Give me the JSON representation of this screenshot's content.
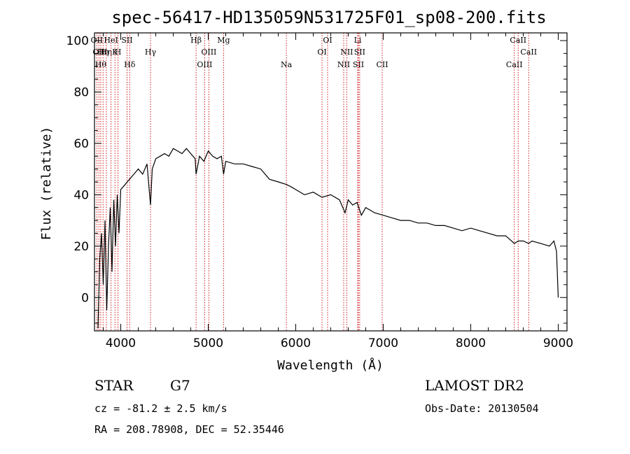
{
  "chart_data": {
    "type": "line",
    "title": "spec-56417-HD135059N531725F01_sp08-200.fits",
    "xlabel": "Wavelength (Å)",
    "ylabel": "Flux (relative)",
    "xlim": [
      3700,
      9100
    ],
    "ylim": [
      -13,
      103
    ],
    "x_ticks": [
      4000,
      5000,
      6000,
      7000,
      8000,
      9000
    ],
    "y_ticks": [
      0,
      20,
      40,
      60,
      80,
      100
    ],
    "grid": false,
    "spectrum_color": "#000000",
    "line_marker_color": "#cc0000",
    "series": [
      {
        "x": [
          3740,
          3760,
          3780,
          3800,
          3820,
          3840,
          3860,
          3880,
          3900,
          3920,
          3940,
          3960,
          3980,
          4000,
          4050,
          4100,
          4150,
          4200,
          4250,
          4300,
          4340,
          4360,
          4400,
          4450,
          4500,
          4550,
          4600,
          4650,
          4700,
          4750,
          4800,
          4850,
          4861,
          4900,
          4950,
          5000,
          5050,
          5100,
          5150,
          5175,
          5200,
          5300,
          5400,
          5500,
          5600,
          5700,
          5800,
          5893,
          5950,
          6000,
          6100,
          6200,
          6300,
          6400,
          6500,
          6563,
          6600,
          6650,
          6700,
          6750,
          6800,
          6900,
          7000,
          7100,
          7200,
          7300,
          7400,
          7500,
          7600,
          7700,
          7800,
          7900,
          8000,
          8100,
          8200,
          8300,
          8400,
          8498,
          8542,
          8600,
          8662,
          8700,
          8800,
          8900,
          8950,
          8980,
          9000
        ],
        "y": [
          -12,
          15,
          25,
          5,
          30,
          -5,
          20,
          35,
          10,
          38,
          20,
          40,
          25,
          42,
          44,
          46,
          48,
          50,
          48,
          52,
          36,
          50,
          54,
          55,
          56,
          55,
          58,
          57,
          56,
          58,
          56,
          54,
          48,
          55,
          53,
          57,
          55,
          54,
          55,
          48,
          53,
          52,
          52,
          51,
          50,
          46,
          45,
          44,
          43,
          42,
          40,
          41,
          39,
          40,
          38,
          33,
          38,
          36,
          37,
          32,
          35,
          33,
          32,
          31,
          30,
          30,
          29,
          29,
          28,
          28,
          27,
          26,
          27,
          26,
          25,
          24,
          24,
          21,
          22,
          22,
          21,
          22,
          21,
          20,
          22,
          18,
          0
        ]
      }
    ],
    "spectral_lines": [
      {
        "wavelength": 3727,
        "label": "OII",
        "row": 1
      },
      {
        "wavelength": 3750,
        "label": "OII",
        "row": 2
      },
      {
        "wavelength": 3771,
        "label": "Hθ",
        "row": 3
      },
      {
        "wavelength": 3798,
        "label": "Hη",
        "row": 2
      },
      {
        "wavelength": 3835,
        "label": "Hη",
        "row": 2
      },
      {
        "wavelength": 3889,
        "label": "HeI",
        "row": 1
      },
      {
        "wavelength": 3934,
        "label": "K",
        "row": 2
      },
      {
        "wavelength": 3968,
        "label": "H",
        "row": 2
      },
      {
        "wavelength": 4072,
        "label": "SII",
        "row": 1
      },
      {
        "wavelength": 4102,
        "label": "Hδ",
        "row": 3
      },
      {
        "wavelength": 4340,
        "label": "Hγ",
        "row": 2
      },
      {
        "wavelength": 4861,
        "label": "Hβ",
        "row": 1
      },
      {
        "wavelength": 4959,
        "label": "OIII",
        "row": 3
      },
      {
        "wavelength": 5007,
        "label": "OIII",
        "row": 2
      },
      {
        "wavelength": 5175,
        "label": "Mg",
        "row": 1
      },
      {
        "wavelength": 5893,
        "label": "Na",
        "row": 3
      },
      {
        "wavelength": 6300,
        "label": "OI",
        "row": 2
      },
      {
        "wavelength": 6364,
        "label": "OI",
        "row": 1
      },
      {
        "wavelength": 6548,
        "label": "NII",
        "row": 3
      },
      {
        "wavelength": 6583,
        "label": "NII",
        "row": 2
      },
      {
        "wavelength": 6708,
        "label": "Li",
        "row": 1
      },
      {
        "wavelength": 6716,
        "label": "SII",
        "row": 3
      },
      {
        "wavelength": 6731,
        "label": "SII",
        "row": 2
      },
      {
        "wavelength": 6988,
        "label": "CII",
        "row": 3
      },
      {
        "wavelength": 8498,
        "label": "CaII",
        "row": 3
      },
      {
        "wavelength": 8542,
        "label": "CaII",
        "row": 1
      },
      {
        "wavelength": 8662,
        "label": "CaII",
        "row": 2
      }
    ]
  },
  "info": {
    "object_class": "STAR",
    "subclass": "G7",
    "survey": "LAMOST DR2",
    "cz_line": "cz = -81.2 ± 2.5 km/s",
    "obs_date_line": "Obs-Date: 20130504",
    "coords_line": "RA = 208.78908, DEC =  52.35446"
  }
}
